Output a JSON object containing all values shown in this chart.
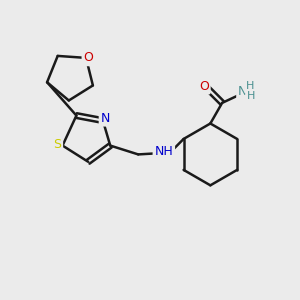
{
  "background_color": "#ebebeb",
  "atom_colors": {
    "C": "#000000",
    "N": "#0000cc",
    "O": "#cc0000",
    "S": "#cccc00",
    "H": "#4a9090"
  },
  "bond_color": "#1a1a1a",
  "bond_width": 1.8,
  "figsize": [
    3.0,
    3.0
  ],
  "dpi": 100
}
